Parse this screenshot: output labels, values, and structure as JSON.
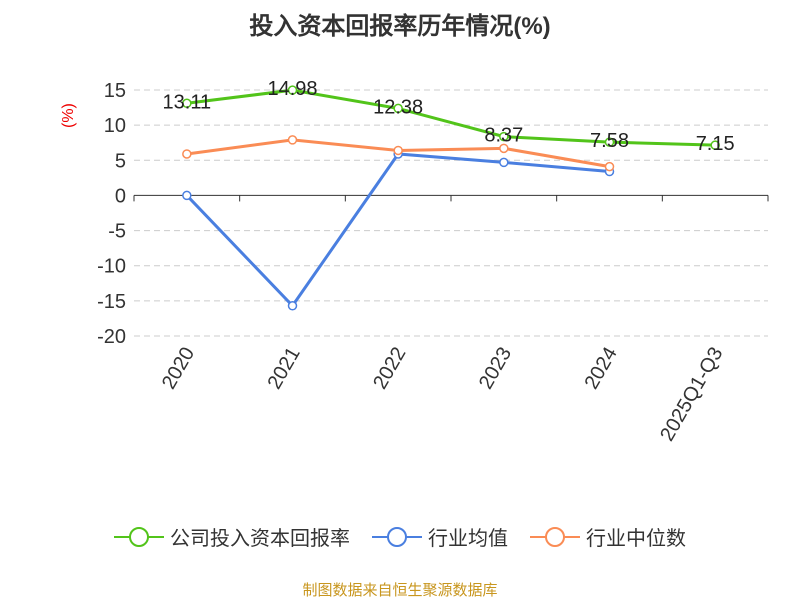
{
  "chart_data": {
    "type": "line",
    "title": "投入资本回报率历年情况(%)",
    "ylabel": "(%)",
    "categories": [
      "2020",
      "2021",
      "2022",
      "2023",
      "2024",
      "2025Q1-Q3"
    ],
    "ylim": [
      -20,
      15
    ],
    "yticks": [
      15,
      10,
      5,
      0,
      -5,
      -10,
      -15,
      -20
    ],
    "series": [
      {
        "name": "公司投入资本回报率",
        "color": "#52c41a",
        "values": [
          13.11,
          14.98,
          12.38,
          8.37,
          7.58,
          7.15
        ],
        "labels": [
          "13.11",
          "14.98",
          "12.38",
          "8.37",
          "7.58",
          "7.15"
        ]
      },
      {
        "name": "行业均值",
        "color": "#4a7fe0",
        "values": [
          0,
          -15.7,
          5.9,
          4.7,
          3.4,
          null
        ]
      },
      {
        "name": "行业中位数",
        "color": "#fa8c55",
        "values": [
          5.9,
          7.9,
          6.4,
          6.7,
          4.1,
          null
        ]
      }
    ],
    "legend": "bottom",
    "grid": true
  },
  "source": "制图数据来自恒生聚源数据库"
}
